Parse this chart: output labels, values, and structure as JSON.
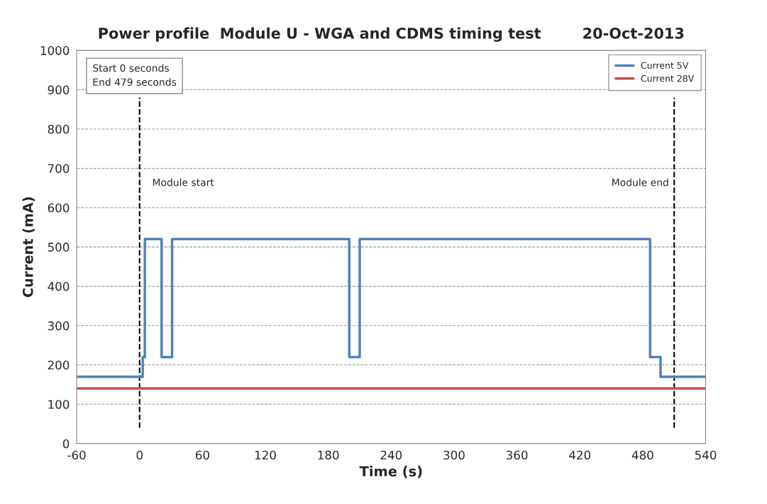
{
  "chart_data": {
    "type": "step",
    "title": "Power profile  Module U - WGA and CDMS timing test        20-Oct-2013",
    "xlabel": "Time (s)",
    "ylabel": "Current (mA)",
    "series": [
      {
        "name": "Current 5V",
        "color": "#4f81bd",
        "x": [
          -60,
          3,
          5,
          21,
          31,
          200,
          210,
          487,
          497,
          540
        ],
        "values": [
          170,
          220,
          520,
          220,
          520,
          220,
          520,
          220,
          170,
          170
        ]
      },
      {
        "name": "Current 28V",
        "color": "#c0504d",
        "type": "line",
        "x": [
          -60,
          540
        ],
        "values": [
          140,
          140
        ]
      }
    ],
    "xlim": [
      -60,
      540
    ],
    "xticks": [
      -60,
      0,
      60,
      120,
      180,
      240,
      300,
      360,
      420,
      480,
      540
    ],
    "ylim": [
      0,
      1000
    ],
    "yticks": [
      0,
      100,
      200,
      300,
      400,
      500,
      600,
      700,
      800,
      900,
      1000
    ],
    "ref_lines": [
      {
        "axis": "x",
        "value": 0,
        "label": "Module start",
        "color": "#000000",
        "line_style": "dashed"
      },
      {
        "axis": "x",
        "value": 510,
        "label": "Module end",
        "color": "#000000",
        "line_style": "dashed"
      }
    ],
    "annotations": [
      "Start 0 seconds\nEnd 479 seconds"
    ],
    "grid": "y",
    "legend": "top right",
    "marker": "none",
    "line_style": "solid"
  }
}
